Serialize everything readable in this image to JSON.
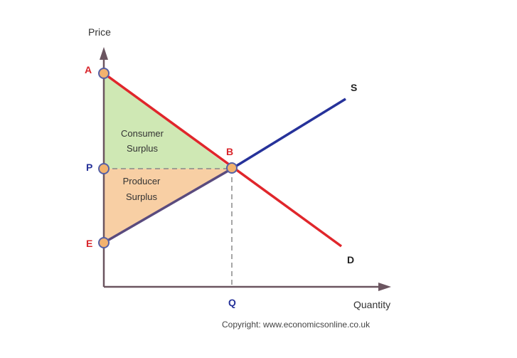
{
  "diagram": {
    "axes": {
      "y_label": "Price",
      "x_label": "Quantity"
    },
    "points": {
      "A": "A",
      "P": "P",
      "E": "E",
      "B": "B",
      "Q": "Q"
    },
    "curves": {
      "supply_label": "S",
      "demand_label": "D"
    },
    "regions": {
      "consumer_surplus": [
        "Consumer",
        "Surplus"
      ],
      "producer_surplus": [
        "Producer",
        "Surplus"
      ]
    },
    "copyright": "Copyright: www.economicsonline.co.uk"
  },
  "colors": {
    "demand": "#e0262b",
    "supply": "#26329a",
    "axis": "#6b5560",
    "consumer_fill": "#cfe8b4",
    "producer_fill": "#f8cfa4",
    "point_fill": "#f2b26e",
    "point_stroke": "#5560a6",
    "red_label": "#d9252b",
    "blue_label": "#26329a"
  }
}
